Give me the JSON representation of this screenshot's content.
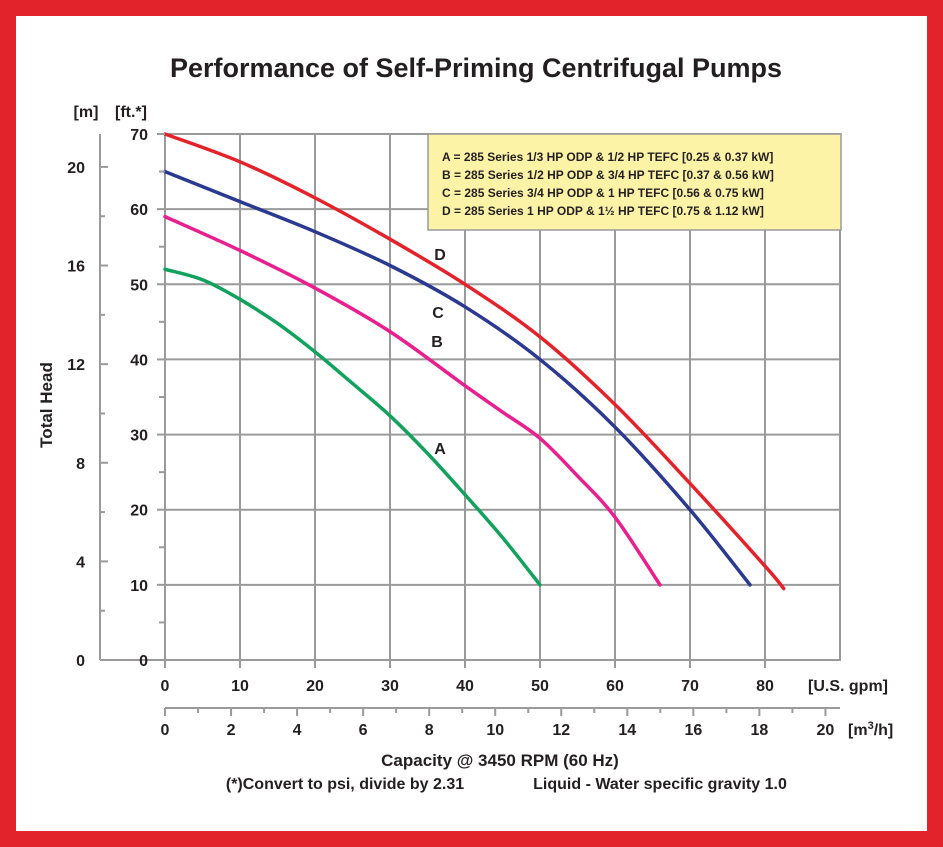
{
  "colors": {
    "frame": "#e3232b",
    "grid": "#9a9a9a",
    "legend_bg": "#fdf3a7",
    "legend_border": "#9a9a9a"
  },
  "chart_data": {
    "type": "line",
    "title": "Performance of Self-Priming Centrifugal Pumps",
    "xlabel": "Capacity @ 3450 RPM (60 Hz)",
    "ylabel": "Total Head",
    "x_unit": "[U.S. gpm]",
    "x2_unit": "[m3/h]",
    "y_unit": "[ft.*]",
    "y2_unit": "[m]",
    "xlim": [
      0,
      90
    ],
    "ylim": [
      0,
      70
    ],
    "x_ticks": [
      "0",
      "10",
      "20",
      "30",
      "40",
      "50",
      "60",
      "70",
      "80"
    ],
    "x2_ticks": [
      "0",
      "2",
      "4",
      "6",
      "8",
      "10",
      "12",
      "14",
      "16",
      "18",
      "20"
    ],
    "y_ticks": [
      "0",
      "10",
      "20",
      "30",
      "40",
      "50",
      "60",
      "70"
    ],
    "y2_ticks": [
      "0",
      "4",
      "8",
      "12",
      "16",
      "20"
    ],
    "grid": true,
    "legend_position": "top-right",
    "legend": [
      "A = 285 Series 1/3 HP ODP & 1/2 HP TEFC [0.25 & 0.37 kW]",
      "B = 285 Series 1/2 HP ODP & 3/4 HP TEFC [0.37 & 0.56 kW]",
      "C = 285 Series 3/4 HP ODP & 1 HP TEFC [0.56 & 0.75 kW]",
      "D = 285 Series 1 HP ODP & 1½ HP TEFC [0.75 & 1.12 kW]"
    ],
    "series": [
      {
        "name": "A",
        "color": "#13a15e",
        "x": [
          0,
          5,
          10,
          15,
          20,
          25,
          30,
          35,
          40,
          45,
          50
        ],
        "y": [
          52,
          50.6,
          48,
          44.8,
          41,
          36.8,
          32.5,
          27.5,
          22,
          16.3,
          10
        ]
      },
      {
        "name": "B",
        "color": "#e81f8e",
        "x": [
          0,
          10,
          20,
          30,
          40,
          45,
          50,
          55,
          60,
          66
        ],
        "y": [
          59,
          54.5,
          49.5,
          43.7,
          36.5,
          33,
          29.5,
          24.5,
          19,
          10
        ]
      },
      {
        "name": "C",
        "color": "#2b3990",
        "x": [
          0,
          10,
          20,
          30,
          40,
          50,
          60,
          70,
          78
        ],
        "y": [
          65,
          61,
          57,
          52.5,
          47,
          40,
          31,
          20,
          10
        ]
      },
      {
        "name": "D",
        "color": "#e3232b",
        "x": [
          0,
          10,
          20,
          30,
          40,
          50,
          60,
          70,
          80,
          82.5
        ],
        "y": [
          70,
          66.3,
          61.5,
          56,
          50,
          43,
          34,
          23.5,
          12.5,
          9.5
        ]
      }
    ],
    "curve_labels": [
      "A",
      "B",
      "C",
      "D"
    ],
    "notes": {
      "convert": "(*)Convert to psi, divide by 2.31",
      "liquid": "Liquid - Water specific gravity 1.0"
    }
  }
}
